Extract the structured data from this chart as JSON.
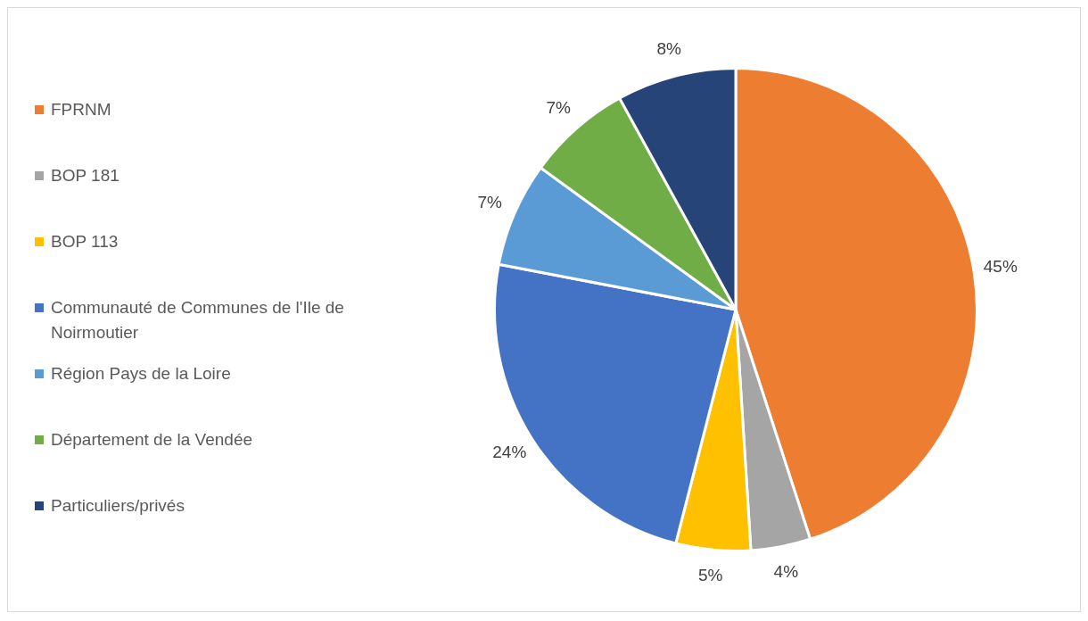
{
  "chart_data": {
    "type": "pie",
    "categories": [
      "FPRNM",
      "BOP 181",
      "BOP 113",
      "Communauté de Communes de l'Ile de Noirmoutier",
      "Région Pays de la Loire",
      "Département de la Vendée",
      "Particuliers/privés"
    ],
    "values": [
      45,
      4,
      5,
      24,
      7,
      7,
      8
    ],
    "value_labels": [
      "45%",
      "4%",
      "5%",
      "24%",
      "7%",
      "7%",
      "8%"
    ],
    "colors": [
      "#ed7d31",
      "#a5a5a5",
      "#ffc000",
      "#4472c4",
      "#5b9bd5",
      "#70ad47",
      "#264478"
    ],
    "legend": "left"
  }
}
